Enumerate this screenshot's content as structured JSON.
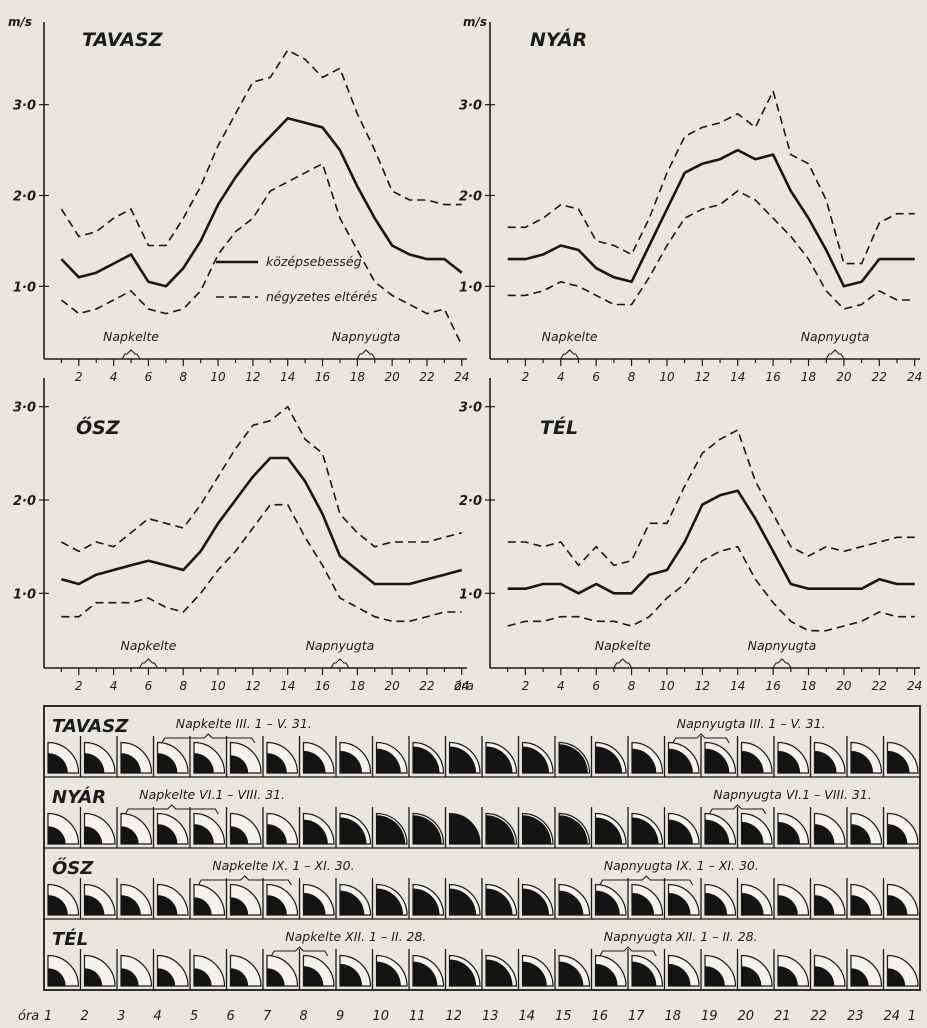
{
  "shared": {
    "unit": "m/s",
    "hour_ticks": [
      "2",
      "4",
      "6",
      "8",
      "10",
      "12",
      "14",
      "16",
      "18",
      "20",
      "22",
      "24"
    ],
    "hour_label": "óra",
    "legend": {
      "mean": "középsebesség",
      "dev": "négyzetes eltérés"
    },
    "sunrise": "Napkelte",
    "sunset": "Napnyugta"
  },
  "chart_data": [
    {
      "type": "line",
      "title": "TAVASZ",
      "ylabel": "m/s",
      "ylim": [
        0.2,
        3.8
      ],
      "yticks": [
        "1·0",
        "2·0",
        "3·0"
      ],
      "x": [
        1,
        2,
        3,
        4,
        5,
        6,
        7,
        8,
        9,
        10,
        11,
        12,
        13,
        14,
        15,
        16,
        17,
        18,
        19,
        20,
        21,
        22,
        23,
        24
      ],
      "series": [
        {
          "name": "középsebesség",
          "values": [
            1.3,
            1.1,
            1.15,
            1.25,
            1.35,
            1.05,
            1.0,
            1.2,
            1.5,
            1.9,
            2.2,
            2.45,
            2.65,
            2.85,
            2.8,
            2.75,
            2.5,
            2.1,
            1.75,
            1.45,
            1.35,
            1.3,
            1.3,
            1.15
          ]
        },
        {
          "name": "négyzetes eltérés",
          "values": [
            1.85,
            1.55,
            1.6,
            1.75,
            1.85,
            1.45,
            1.45,
            1.75,
            2.1,
            2.55,
            2.9,
            3.25,
            3.3,
            3.6,
            3.5,
            3.3,
            3.4,
            2.9,
            2.5,
            2.05,
            1.95,
            1.95,
            1.9,
            1.9
          ]
        },
        {
          "name": "négyzetes eltérés",
          "values": [
            0.85,
            0.7,
            0.75,
            0.85,
            0.95,
            0.75,
            0.7,
            0.75,
            0.95,
            1.35,
            1.6,
            1.75,
            2.05,
            2.15,
            2.25,
            2.35,
            1.75,
            1.4,
            1.05,
            0.9,
            0.8,
            0.7,
            0.75,
            0.35
          ]
        }
      ],
      "sunrise_hour": 5,
      "sunset_hour": 18.5,
      "legend_visible": true
    },
    {
      "type": "line",
      "title": "NYÁR",
      "ylabel": "m/s",
      "ylim": [
        0.2,
        3.8
      ],
      "yticks": [
        "1·0",
        "2·0",
        "3·0"
      ],
      "x": [
        1,
        2,
        3,
        4,
        5,
        6,
        7,
        8,
        9,
        10,
        11,
        12,
        13,
        14,
        15,
        16,
        17,
        18,
        19,
        20,
        21,
        22,
        23,
        24
      ],
      "series": [
        {
          "name": "középsebesség",
          "values": [
            1.3,
            1.3,
            1.35,
            1.45,
            1.4,
            1.2,
            1.1,
            1.05,
            1.45,
            1.85,
            2.25,
            2.35,
            2.4,
            2.5,
            2.4,
            2.45,
            2.05,
            1.75,
            1.4,
            1.0,
            1.05,
            1.3,
            1.3,
            1.3
          ]
        },
        {
          "name": "négyzetes eltérés",
          "values": [
            1.65,
            1.65,
            1.75,
            1.9,
            1.85,
            1.5,
            1.45,
            1.35,
            1.75,
            2.25,
            2.65,
            2.75,
            2.8,
            2.9,
            2.75,
            3.15,
            2.45,
            2.35,
            1.95,
            1.25,
            1.25,
            1.7,
            1.8,
            1.8
          ]
        },
        {
          "name": "négyzetes eltérés",
          "values": [
            0.9,
            0.9,
            0.95,
            1.05,
            1.0,
            0.9,
            0.8,
            0.8,
            1.1,
            1.45,
            1.75,
            1.85,
            1.9,
            2.05,
            1.95,
            1.75,
            1.55,
            1.3,
            0.95,
            0.75,
            0.8,
            0.95,
            0.85,
            0.85
          ]
        }
      ],
      "sunrise_hour": 4.5,
      "sunset_hour": 19.5,
      "legend_visible": false
    },
    {
      "type": "line",
      "title": "ŐSZ",
      "ylabel": "m/s",
      "ylim": [
        0.2,
        3.2
      ],
      "yticks": [
        "1·0",
        "2·0",
        "3·0"
      ],
      "x": [
        1,
        2,
        3,
        4,
        5,
        6,
        7,
        8,
        9,
        10,
        11,
        12,
        13,
        14,
        15,
        16,
        17,
        18,
        19,
        20,
        21,
        22,
        23,
        24
      ],
      "series": [
        {
          "name": "középsebesség",
          "values": [
            1.15,
            1.1,
            1.2,
            1.25,
            1.3,
            1.35,
            1.3,
            1.25,
            1.45,
            1.75,
            2.0,
            2.25,
            2.45,
            2.45,
            2.2,
            1.85,
            1.4,
            1.25,
            1.1,
            1.1,
            1.1,
            1.15,
            1.2,
            1.25
          ]
        },
        {
          "name": "négyzetes eltérés",
          "values": [
            1.55,
            1.45,
            1.55,
            1.5,
            1.65,
            1.8,
            1.75,
            1.7,
            1.95,
            2.25,
            2.55,
            2.8,
            2.85,
            3.0,
            2.65,
            2.5,
            1.85,
            1.65,
            1.5,
            1.55,
            1.55,
            1.55,
            1.6,
            1.65
          ]
        },
        {
          "name": "négyzetes eltérés",
          "values": [
            0.75,
            0.75,
            0.9,
            0.9,
            0.9,
            0.95,
            0.85,
            0.8,
            1.0,
            1.25,
            1.45,
            1.7,
            1.95,
            1.95,
            1.6,
            1.3,
            0.95,
            0.85,
            0.75,
            0.7,
            0.7,
            0.75,
            0.8,
            0.8
          ]
        }
      ],
      "sunrise_hour": 6,
      "sunset_hour": 17,
      "legend_visible": false
    },
    {
      "type": "line",
      "title": "TÉL",
      "ylabel": "m/s",
      "ylim": [
        0.2,
        3.2
      ],
      "yticks": [
        "1·0",
        "2·0",
        "3·0"
      ],
      "x": [
        1,
        2,
        3,
        4,
        5,
        6,
        7,
        8,
        9,
        10,
        11,
        12,
        13,
        14,
        15,
        16,
        17,
        18,
        19,
        20,
        21,
        22,
        23,
        24
      ],
      "series": [
        {
          "name": "középsebesség",
          "values": [
            1.05,
            1.05,
            1.1,
            1.1,
            1.0,
            1.1,
            1.0,
            1.0,
            1.2,
            1.25,
            1.55,
            1.95,
            2.05,
            2.1,
            1.8,
            1.45,
            1.1,
            1.05,
            1.05,
            1.05,
            1.05,
            1.15,
            1.1,
            1.1
          ]
        },
        {
          "name": "négyzetes eltérés",
          "values": [
            1.55,
            1.55,
            1.5,
            1.55,
            1.3,
            1.5,
            1.3,
            1.35,
            1.75,
            1.75,
            2.15,
            2.5,
            2.65,
            2.75,
            2.2,
            1.85,
            1.5,
            1.4,
            1.5,
            1.45,
            1.5,
            1.55,
            1.6,
            1.6
          ]
        },
        {
          "name": "négyzetes eltérés",
          "values": [
            0.65,
            0.7,
            0.7,
            0.75,
            0.75,
            0.7,
            0.7,
            0.65,
            0.75,
            0.95,
            1.1,
            1.35,
            1.45,
            1.5,
            1.15,
            0.9,
            0.7,
            0.6,
            0.6,
            0.65,
            0.7,
            0.8,
            0.75,
            0.75
          ]
        }
      ],
      "sunrise_hour": 7.5,
      "sunset_hour": 16.5,
      "legend_visible": false
    }
  ],
  "grid": {
    "hours": [
      "1",
      "2",
      "3",
      "4",
      "5",
      "6",
      "7",
      "8",
      "9",
      "10",
      "11",
      "12",
      "13",
      "14",
      "15",
      "16",
      "17",
      "18",
      "19",
      "20",
      "21",
      "22",
      "23",
      "24",
      "1"
    ],
    "hour_prefix": "óra",
    "rows": [
      {
        "season": "TAVASZ",
        "sunrise_text": "Napkelte  III. 1 – V. 31.",
        "sunrise_span": [
          4,
          6
        ],
        "sunset_text": "Napnyugta  III. 1 – V. 31.",
        "sunset_span": [
          18,
          19
        ],
        "fill": [
          0.45,
          0.45,
          0.45,
          0.45,
          0.45,
          0.4,
          0.45,
          0.5,
          0.5,
          0.55,
          0.6,
          0.6,
          0.6,
          0.6,
          0.65,
          0.6,
          0.55,
          0.55,
          0.55,
          0.5,
          0.5,
          0.5,
          0.5,
          0.5
        ]
      },
      {
        "season": "NYÁR",
        "sunrise_text": "Napkelte  VI.1 – VIII. 31.",
        "sunrise_span": [
          3,
          5
        ],
        "sunset_text": "Napnyugta  VI.1 – VIII. 31.",
        "sunset_span": [
          19,
          20
        ],
        "fill": [
          0.4,
          0.4,
          0.4,
          0.45,
          0.45,
          0.4,
          0.45,
          0.55,
          0.6,
          0.65,
          0.65,
          0.7,
          0.65,
          0.65,
          0.65,
          0.6,
          0.6,
          0.55,
          0.55,
          0.5,
          0.5,
          0.45,
          0.45,
          0.45
        ]
      },
      {
        "season": "ŐSZ",
        "sunrise_text": "Napkelte  IX. 1 – XI. 30.",
        "sunrise_span": [
          5,
          7
        ],
        "sunset_text": "Napnyugta  IX. 1 – XI. 30.",
        "sunset_span": [
          16,
          18
        ],
        "fill": [
          0.45,
          0.45,
          0.45,
          0.45,
          0.4,
          0.4,
          0.45,
          0.5,
          0.55,
          0.6,
          0.6,
          0.6,
          0.6,
          0.6,
          0.55,
          0.55,
          0.5,
          0.5,
          0.5,
          0.5,
          0.45,
          0.45,
          0.45,
          0.45
        ]
      },
      {
        "season": "TÉL",
        "sunrise_text": "Napkelte  XII. 1 – II. 28.",
        "sunrise_span": [
          7,
          8
        ],
        "sunset_text": "Napnyugta  XII. 1 – II. 28.",
        "sunset_span": [
          16,
          17
        ],
        "fill": [
          0.4,
          0.4,
          0.4,
          0.4,
          0.4,
          0.4,
          0.4,
          0.45,
          0.5,
          0.55,
          0.55,
          0.6,
          0.6,
          0.55,
          0.55,
          0.5,
          0.55,
          0.5,
          0.45,
          0.45,
          0.45,
          0.45,
          0.4,
          0.4
        ]
      }
    ]
  }
}
